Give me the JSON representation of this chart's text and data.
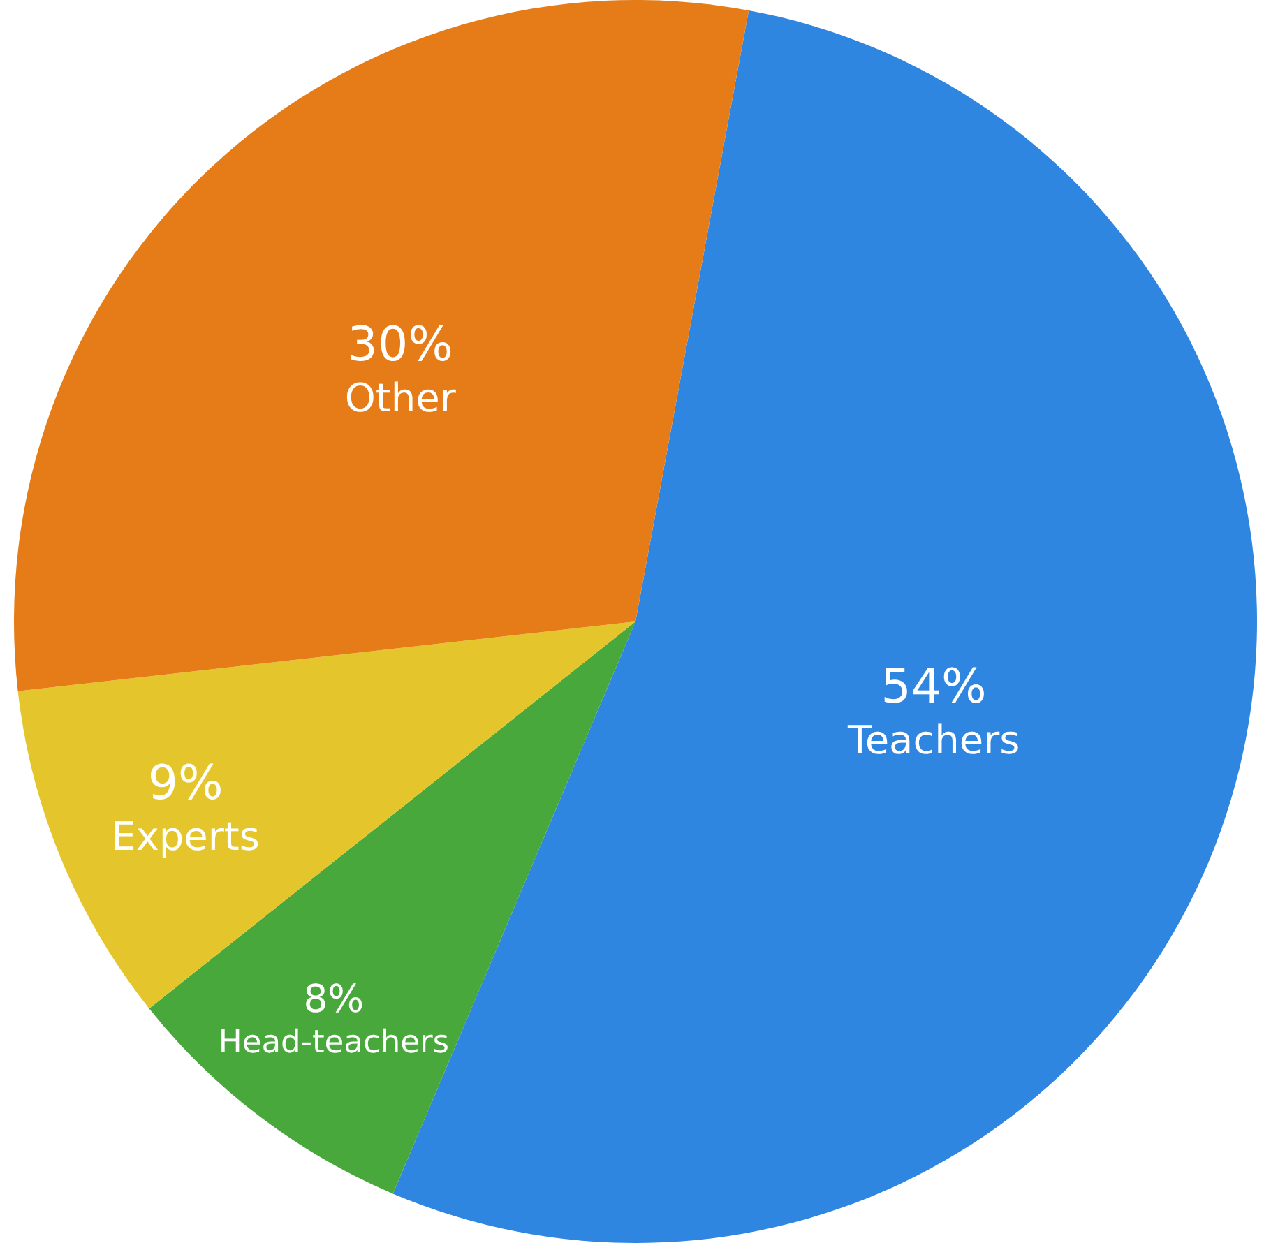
{
  "chart_data": {
    "type": "pie",
    "categories": [
      "Teachers",
      "Head-teachers",
      "Experts",
      "Other"
    ],
    "values": [
      54,
      8,
      9,
      30
    ],
    "value_labels": [
      "54%",
      "8%",
      "9%",
      "30%"
    ],
    "colors": [
      "#2f86e0",
      "#48a83c",
      "#e4c62c",
      "#e67c18"
    ],
    "legend": false
  }
}
